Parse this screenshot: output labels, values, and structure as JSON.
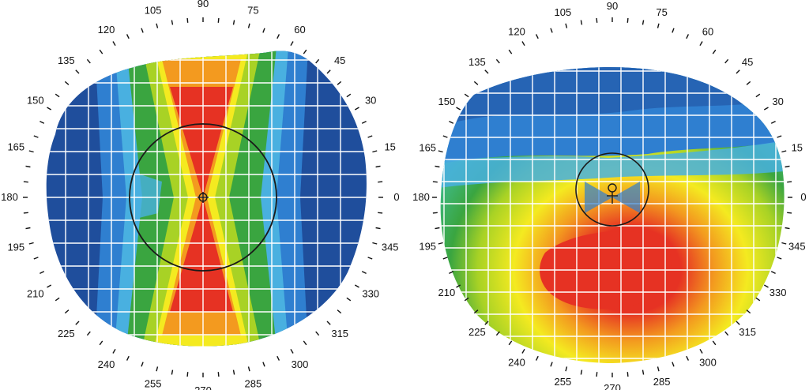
{
  "figure": {
    "panels": [
      {
        "id": "left",
        "pattern": "symmetric-bowtie",
        "angle_labels": [
          "0",
          "15",
          "30",
          "45",
          "60",
          "75",
          "90",
          "105",
          "120",
          "135",
          "150",
          "165",
          "180",
          "195",
          "210",
          "225",
          "240",
          "255",
          "270",
          "285",
          "300",
          "315",
          "330",
          "345"
        ]
      },
      {
        "id": "right",
        "pattern": "inferior-steepening",
        "angle_labels": [
          "0",
          "15",
          "30",
          "45",
          "60",
          "75",
          "90",
          "105",
          "120",
          "135",
          "150",
          "165",
          "180",
          "195",
          "210",
          "225",
          "240",
          "255",
          "270",
          "285",
          "300",
          "315",
          "330",
          "345"
        ]
      }
    ],
    "colors": {
      "dark_blue": "#1f4e9c",
      "blue": "#2f7fd0",
      "light_blue": "#49b0e0",
      "cyan_green": "#3fb880",
      "green": "#3aa540",
      "yellow_green": "#a8d225",
      "yellow": "#f4ea20",
      "orange": "#f39a1f",
      "red": "#e63223",
      "grid": "#ffffff",
      "circle": "#1a1a1a"
    }
  }
}
